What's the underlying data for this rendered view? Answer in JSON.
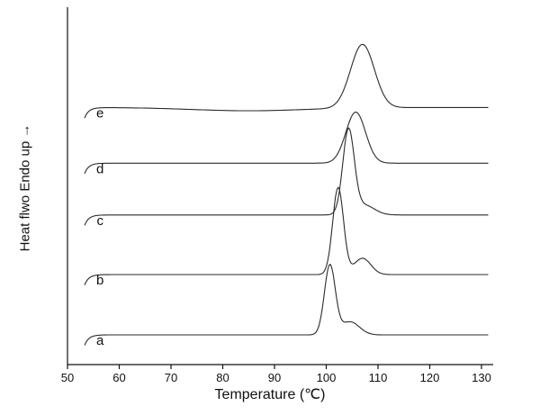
{
  "figure": {
    "background": "#ffffff",
    "line_color": "#2b2b2b",
    "axis_color": "#111111"
  },
  "chart_data": {
    "type": "line",
    "title": "",
    "xlabel": "Temperature (℃)",
    "ylabel": "Heat flwo Endo up →",
    "x_units": "°C",
    "y_units": "heat flow (arbitrary units, endotherm up), curves vertically offset",
    "xlim": [
      50,
      131.7
    ],
    "x_ticks": [
      50,
      60,
      70,
      80,
      90,
      100,
      110,
      120,
      130
    ],
    "grid": false,
    "legend": "curve letters drawn at left end of each trace",
    "x_start": 53.3,
    "x_end": 131.5,
    "start_hook_depth": 0.16,
    "label_x_temperature": 56.3,
    "series": [
      {
        "name": "a",
        "label": "a",
        "baseline_offset": 0.0,
        "peaks": [
          {
            "center": 100.7,
            "height": 1.06,
            "width": 1.05
          },
          {
            "center": 104.6,
            "height": 0.2,
            "width": 1.8
          }
        ],
        "main_peak_temperature": 100.7
      },
      {
        "name": "b",
        "label": "b",
        "baseline_offset": 0.92,
        "peaks": [
          {
            "center": 102.3,
            "height": 1.33,
            "width": 1.05
          },
          {
            "center": 107.0,
            "height": 0.25,
            "width": 1.6
          }
        ],
        "main_peak_temperature": 102.3
      },
      {
        "name": "c",
        "label": "c",
        "baseline_offset": 1.83,
        "peaks": [
          {
            "center": 104.3,
            "height": 1.28,
            "width": 1.1
          },
          {
            "center": 107.3,
            "height": 0.15,
            "width": 2.0
          }
        ],
        "main_peak_temperature": 104.3
      },
      {
        "name": "d",
        "label": "d",
        "baseline_offset": 2.62,
        "peaks": [
          {
            "center": 105.7,
            "height": 0.78,
            "width": 1.9
          }
        ],
        "main_peak_temperature": 105.7
      },
      {
        "name": "e",
        "label": "e",
        "baseline_offset": 3.47,
        "peaks": [
          {
            "center": 85.0,
            "height": -0.05,
            "width": 11.0
          },
          {
            "center": 107.0,
            "height": 0.97,
            "width": 2.3
          }
        ],
        "main_peak_temperature": 107.0
      }
    ]
  }
}
